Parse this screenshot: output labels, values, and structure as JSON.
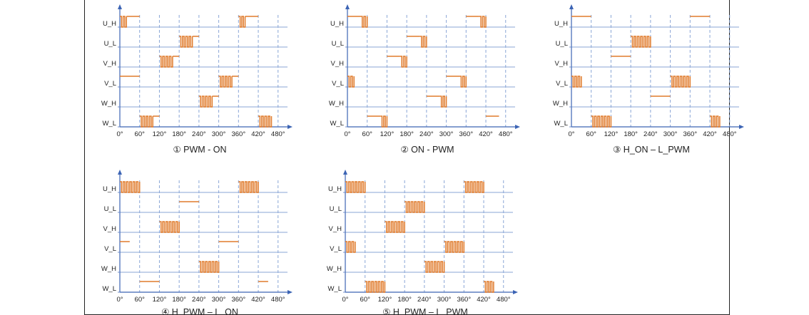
{
  "colors": {
    "grid": "#8aa6d6",
    "axis": "#3c64b4",
    "signal": "#e07b2c",
    "tick": "#6f8cc8",
    "text": "#222222"
  },
  "figure": {
    "x_ticks": [
      "0°",
      "60°",
      "120°",
      "180°",
      "240°",
      "300°",
      "360°",
      "420°",
      "480°"
    ],
    "signals": [
      "U_H",
      "U_L",
      "V_H",
      "V_L",
      "W_H",
      "W_L"
    ],
    "panels": [
      {
        "caption": "① PWM - ON",
        "rows": [
          {
            "segments": [
              {
                "from": 0,
                "to": 20,
                "mode": "pwm"
              },
              {
                "from": 20,
                "to": 60,
                "mode": "on"
              },
              {
                "from": 360,
                "to": 380,
                "mode": "pwm"
              },
              {
                "from": 380,
                "to": 420,
                "mode": "on"
              }
            ]
          },
          {
            "segments": [
              {
                "from": 180,
                "to": 220,
                "mode": "pwm"
              },
              {
                "from": 220,
                "to": 240,
                "mode": "on"
              }
            ]
          },
          {
            "segments": [
              {
                "from": 120,
                "to": 160,
                "mode": "pwm"
              },
              {
                "from": 160,
                "to": 180,
                "mode": "on"
              }
            ]
          },
          {
            "segments": [
              {
                "from": 0,
                "to": 60,
                "mode": "on"
              },
              {
                "from": 300,
                "to": 340,
                "mode": "pwm"
              },
              {
                "from": 340,
                "to": 360,
                "mode": "on"
              }
            ]
          },
          {
            "segments": [
              {
                "from": 240,
                "to": 280,
                "mode": "pwm"
              },
              {
                "from": 280,
                "to": 300,
                "mode": "on"
              }
            ]
          },
          {
            "segments": [
              {
                "from": 60,
                "to": 100,
                "mode": "pwm"
              },
              {
                "from": 100,
                "to": 120,
                "mode": "on"
              },
              {
                "from": 420,
                "to": 460,
                "mode": "pwm"
              }
            ]
          }
        ]
      },
      {
        "caption": "② ON - PWM",
        "rows": [
          {
            "segments": [
              {
                "from": 0,
                "to": 40,
                "mode": "on"
              },
              {
                "from": 40,
                "to": 60,
                "mode": "pwm"
              },
              {
                "from": 360,
                "to": 400,
                "mode": "on"
              },
              {
                "from": 400,
                "to": 420,
                "mode": "pwm"
              }
            ]
          },
          {
            "segments": [
              {
                "from": 180,
                "to": 220,
                "mode": "on"
              },
              {
                "from": 220,
                "to": 240,
                "mode": "pwm"
              }
            ]
          },
          {
            "segments": [
              {
                "from": 120,
                "to": 160,
                "mode": "on"
              },
              {
                "from": 160,
                "to": 180,
                "mode": "pwm"
              }
            ]
          },
          {
            "segments": [
              {
                "from": 0,
                "to": 20,
                "mode": "pwm"
              },
              {
                "from": 300,
                "to": 340,
                "mode": "on"
              },
              {
                "from": 340,
                "to": 360,
                "mode": "pwm"
              }
            ]
          },
          {
            "segments": [
              {
                "from": 240,
                "to": 280,
                "mode": "on"
              },
              {
                "from": 280,
                "to": 300,
                "mode": "pwm"
              }
            ]
          },
          {
            "segments": [
              {
                "from": 60,
                "to": 100,
                "mode": "on"
              },
              {
                "from": 100,
                "to": 120,
                "mode": "pwm"
              },
              {
                "from": 420,
                "to": 460,
                "mode": "on"
              }
            ]
          }
        ]
      },
      {
        "caption": "③ H_ON – L_PWM",
        "rows": [
          {
            "segments": [
              {
                "from": 0,
                "to": 60,
                "mode": "on"
              },
              {
                "from": 360,
                "to": 420,
                "mode": "on"
              }
            ]
          },
          {
            "segments": [
              {
                "from": 180,
                "to": 240,
                "mode": "pwm"
              }
            ]
          },
          {
            "segments": [
              {
                "from": 120,
                "to": 180,
                "mode": "on"
              }
            ]
          },
          {
            "segments": [
              {
                "from": 0,
                "to": 30,
                "mode": "pwm"
              },
              {
                "from": 300,
                "to": 360,
                "mode": "pwm"
              }
            ]
          },
          {
            "segments": [
              {
                "from": 240,
                "to": 300,
                "mode": "on"
              }
            ]
          },
          {
            "segments": [
              {
                "from": 60,
                "to": 120,
                "mode": "pwm"
              },
              {
                "from": 420,
                "to": 450,
                "mode": "pwm"
              }
            ]
          }
        ]
      },
      {
        "caption": "④ H_PWM – L_ON",
        "rows": [
          {
            "segments": [
              {
                "from": 0,
                "to": 60,
                "mode": "pwm"
              },
              {
                "from": 360,
                "to": 420,
                "mode": "pwm"
              }
            ]
          },
          {
            "segments": [
              {
                "from": 180,
                "to": 240,
                "mode": "on"
              }
            ]
          },
          {
            "segments": [
              {
                "from": 120,
                "to": 180,
                "mode": "pwm"
              }
            ]
          },
          {
            "segments": [
              {
                "from": 0,
                "to": 30,
                "mode": "on"
              },
              {
                "from": 300,
                "to": 360,
                "mode": "on"
              }
            ]
          },
          {
            "segments": [
              {
                "from": 240,
                "to": 300,
                "mode": "pwm"
              }
            ]
          },
          {
            "segments": [
              {
                "from": 60,
                "to": 120,
                "mode": "on"
              },
              {
                "from": 420,
                "to": 450,
                "mode": "on"
              }
            ]
          }
        ]
      },
      {
        "caption": "⑤ H_PWM – L_PWM",
        "rows": [
          {
            "segments": [
              {
                "from": 0,
                "to": 60,
                "mode": "pwm"
              },
              {
                "from": 360,
                "to": 420,
                "mode": "pwm"
              }
            ]
          },
          {
            "segments": [
              {
                "from": 180,
                "to": 240,
                "mode": "pwm"
              }
            ]
          },
          {
            "segments": [
              {
                "from": 120,
                "to": 180,
                "mode": "pwm"
              }
            ]
          },
          {
            "segments": [
              {
                "from": 0,
                "to": 30,
                "mode": "pwm"
              },
              {
                "from": 300,
                "to": 360,
                "mode": "pwm"
              }
            ]
          },
          {
            "segments": [
              {
                "from": 240,
                "to": 300,
                "mode": "pwm"
              }
            ]
          },
          {
            "segments": [
              {
                "from": 60,
                "to": 120,
                "mode": "pwm"
              },
              {
                "from": 420,
                "to": 450,
                "mode": "pwm"
              }
            ]
          }
        ]
      }
    ]
  }
}
